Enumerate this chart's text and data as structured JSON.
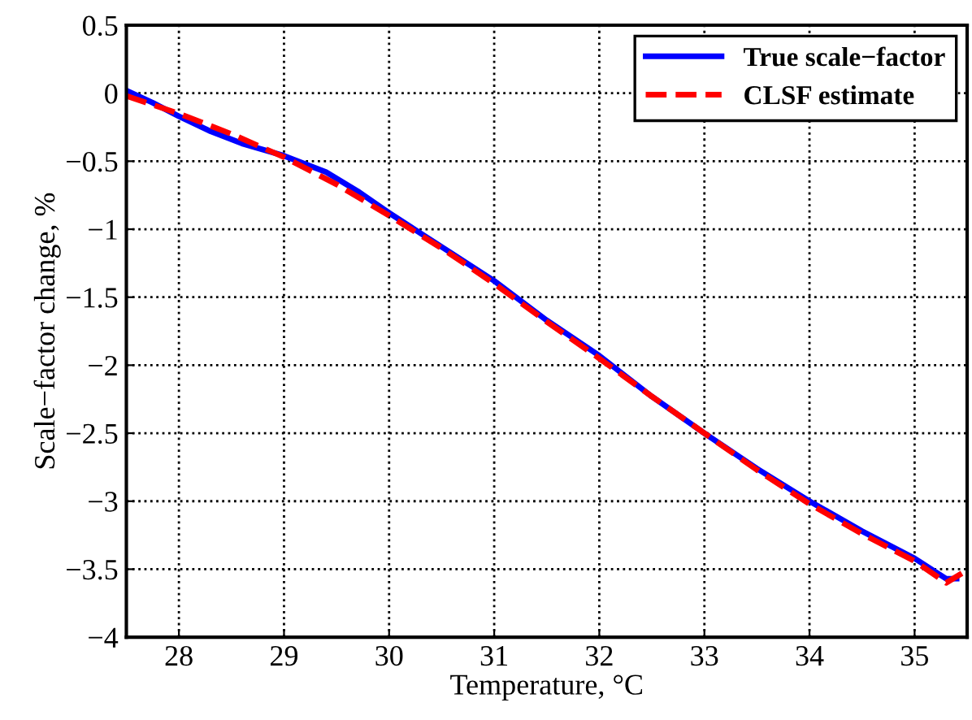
{
  "chart_data": {
    "type": "line",
    "xlabel": "Temperature, °C",
    "ylabel": "Scale−factor change, %",
    "xlim": [
      27.5,
      35.5
    ],
    "xticks": [
      28,
      29,
      30,
      31,
      32,
      33,
      34,
      35
    ],
    "ylim": [
      -4,
      0.5
    ],
    "yticks": [
      {
        "value": -4,
        "label": "−4"
      },
      {
        "value": -3.5,
        "label": "−3.5"
      },
      {
        "value": -3,
        "label": "−3"
      },
      {
        "value": -2.5,
        "label": "−2.5"
      },
      {
        "value": -2,
        "label": "−2"
      },
      {
        "value": -1.5,
        "label": "−1.5"
      },
      {
        "value": -1,
        "label": "−1"
      },
      {
        "value": -0.5,
        "label": "−0.5"
      },
      0,
      0.5
    ],
    "grid": true,
    "legend": "top right",
    "series": [
      {
        "name": "True scale−factor",
        "color": "#0000ff",
        "line_style": "solid",
        "x": [
          27.5,
          27.75,
          28,
          28.3,
          28.6,
          29,
          29.4,
          29.7,
          30,
          30.3,
          30.6,
          31,
          31.5,
          32,
          32.5,
          33,
          33.5,
          34,
          34.5,
          35,
          35.3,
          35.4
        ],
        "values": [
          0.02,
          -0.07,
          -0.17,
          -0.28,
          -0.37,
          -0.46,
          -0.58,
          -0.72,
          -0.88,
          -1.03,
          -1.18,
          -1.38,
          -1.67,
          -1.93,
          -2.23,
          -2.5,
          -2.76,
          -3.0,
          -3.22,
          -3.42,
          -3.57,
          -3.57
        ]
      },
      {
        "name": "CLSF estimate",
        "color": "#ff0000",
        "line_style": "dashed",
        "x": [
          27.5,
          28,
          28.5,
          29,
          29.5,
          30,
          30.5,
          31,
          31.5,
          32,
          32.5,
          33,
          33.5,
          34,
          34.5,
          35,
          35.3,
          35.45
        ],
        "values": [
          -0.02,
          -0.15,
          -0.3,
          -0.47,
          -0.67,
          -0.9,
          -1.14,
          -1.4,
          -1.68,
          -1.95,
          -2.23,
          -2.5,
          -2.77,
          -3.02,
          -3.24,
          -3.44,
          -3.6,
          -3.53
        ]
      }
    ]
  }
}
